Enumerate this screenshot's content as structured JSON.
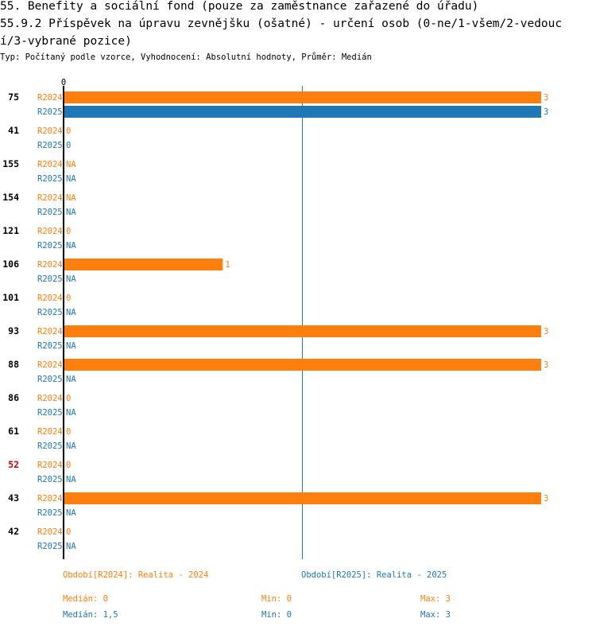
{
  "header": {
    "title_line1": "55. Benefity a sociální fond (pouze za zaměstnance zařazené do úřadu)",
    "title_line2": "55.9.2 Příspěvek na úpravu zevnějšku (ošatné) - určení osob (0-ne/1-všem/2-vedouc",
    "title_line3": "í/3-vybrané pozice)",
    "subtitle": "Typ: Počítaný podle vzorce, Vyhodnocení: Absolutní hodnoty, Průměr: Medián"
  },
  "colors": {
    "R2024": "#ff7f0e",
    "R2025": "#1f77b4",
    "highlight_label": "#cc0000",
    "axis": "#000000"
  },
  "chart_data": {
    "type": "bar",
    "orientation": "horizontal",
    "x_axis_tick": "0",
    "xlim": [
      0,
      3
    ],
    "median_line_value": 1.5,
    "series_names": [
      "R2024",
      "R2025"
    ],
    "categories": [
      {
        "label": "75",
        "highlight": false,
        "R2024": "3",
        "R2025": "3"
      },
      {
        "label": "41",
        "highlight": false,
        "R2024": "0",
        "R2025": "0"
      },
      {
        "label": "155",
        "highlight": false,
        "R2024": "NA",
        "R2025": "NA"
      },
      {
        "label": "154",
        "highlight": false,
        "R2024": "NA",
        "R2025": "NA"
      },
      {
        "label": "121",
        "highlight": false,
        "R2024": "0",
        "R2025": "NA"
      },
      {
        "label": "106",
        "highlight": false,
        "R2024": "1",
        "R2025": "NA"
      },
      {
        "label": "101",
        "highlight": false,
        "R2024": "0",
        "R2025": "NA"
      },
      {
        "label": "93",
        "highlight": false,
        "R2024": "3",
        "R2025": "NA"
      },
      {
        "label": "88",
        "highlight": false,
        "R2024": "3",
        "R2025": "NA"
      },
      {
        "label": "86",
        "highlight": false,
        "R2024": "0",
        "R2025": "NA"
      },
      {
        "label": "61",
        "highlight": false,
        "R2024": "0",
        "R2025": "NA"
      },
      {
        "label": "52",
        "highlight": true,
        "R2024": "0",
        "R2025": "NA"
      },
      {
        "label": "43",
        "highlight": false,
        "R2024": "3",
        "R2025": "NA"
      },
      {
        "label": "42",
        "highlight": false,
        "R2024": "0",
        "R2025": "NA"
      }
    ]
  },
  "legend": {
    "period_2024": "Období[R2024]: Realita - 2024",
    "period_2025": "Období[R2025]: Realita - 2025",
    "stats_2024": {
      "median": "Medián: 0",
      "min": "Min: 0",
      "max": "Max: 3"
    },
    "stats_2025": {
      "median": "Medián: 1,5",
      "min": "Min: 0",
      "max": "Max: 3"
    }
  }
}
